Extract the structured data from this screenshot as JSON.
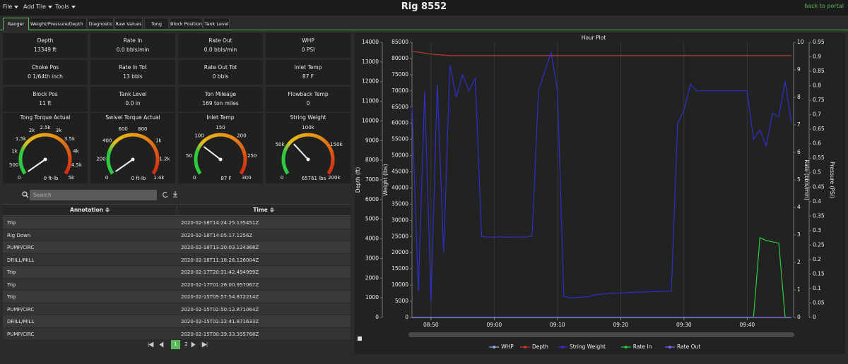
{
  "menu": [
    "File",
    "Add Tile",
    "Tools"
  ],
  "title": "Rig 8552",
  "back_link": "back to portal",
  "tabs": [
    "Ranger",
    "Weight/Pressure/Depth ...",
    "Diagnostic",
    "Raw Values",
    "Tong",
    "Block Position",
    "Tank Level"
  ],
  "tiles": [
    {
      "label": "Depth",
      "value": "13349 ft"
    },
    {
      "label": "Rate In",
      "value": "0.0 bbls/min"
    },
    {
      "label": "Rate Out",
      "value": "0.0 bbls/min"
    },
    {
      "label": "WHP",
      "value": "0 PSI"
    },
    {
      "label": "Choke Pos",
      "value": "0 1/64th inch"
    },
    {
      "label": "Rate In Tot",
      "value": "13 bbls"
    },
    {
      "label": "Rate Out Tot",
      "value": "0 bbls"
    },
    {
      "label": "Inlet Temp",
      "value": "87 F"
    },
    {
      "label": "Block Pos",
      "value": "11 ft"
    },
    {
      "label": "Tank Level",
      "value": "0.0 in"
    },
    {
      "label": "Ton Mileage",
      "value": "169 ton miles"
    },
    {
      "label": "Flowback Temp",
      "value": "0"
    }
  ],
  "gauges": [
    {
      "title": "Tong Torque Actual",
      "lim": [
        0,
        5000
      ],
      "value": 0,
      "value_label": "0 ft-lb",
      "ticks": [
        0,
        500,
        {
          "value": 1000,
          "label": "1k"
        },
        {
          "value": 1500,
          "label": "1.5k"
        },
        {
          "value": 2000,
          "label": "2k"
        },
        {
          "value": 2500,
          "label": "2.5k"
        },
        {
          "value": 3000,
          "label": "3k"
        },
        {
          "value": 3500,
          "label": "3.5k"
        },
        {
          "value": 4000,
          "label": "4k"
        },
        {
          "value": 4500,
          "label": "4.5k"
        },
        {
          "value": 5000,
          "label": "5k"
        }
      ]
    },
    {
      "title": "Swivel Torque Actual",
      "lim": [
        0,
        1400
      ],
      "value": 0,
      "value_label": "0 ft-lb",
      "ticks": [
        0,
        200,
        400,
        600,
        800,
        {
          "value": 1000,
          "label": "1k"
        },
        {
          "value": 1200,
          "label": "1.2k"
        },
        {
          "value": 1400,
          "label": "1.4k"
        }
      ]
    },
    {
      "title": "Inlet Temp",
      "lim": [
        0,
        300
      ],
      "value": 87,
      "value_label": "87 F",
      "ticks": [
        0,
        50,
        100,
        150,
        200,
        250,
        300
      ]
    },
    {
      "title": "String Weight",
      "lim": [
        0,
        200000
      ],
      "value": 65761,
      "value_label": "65761 lbs",
      "ticks": [
        0,
        {
          "value": 50000,
          "label": "50k"
        },
        {
          "value": 100000,
          "label": "100k"
        },
        {
          "value": 150000,
          "label": "150k"
        },
        {
          "value": 200000,
          "label": "200k"
        }
      ]
    }
  ],
  "search_placeholder": "Search",
  "table": {
    "columns": [
      "Annotation",
      "Time"
    ],
    "rows": [
      [
        "Trip",
        "2020-02-18T14:24:25.135451Z"
      ],
      [
        "Rig Down",
        "2020-02-18T14:05:17.1256Z"
      ],
      [
        "PUMP/CIRC",
        "2020-02-18T13:20:03.124368Z"
      ],
      [
        "DRILL/MILL",
        "2020-02-18T11:18:26.126004Z"
      ],
      [
        "Trip",
        "2020-02-17T20:31:42.494999Z"
      ],
      [
        "Trip",
        "2020-02-17T01:26:00.957067Z"
      ],
      [
        "Trip",
        "2020-02-15T05:57:54.872214Z"
      ],
      [
        "PUMP/CIRC",
        "2020-02-15T02:50:12.871064Z"
      ],
      [
        "DRILL/MILL",
        "2020-02-15T02:22:41.871633Z"
      ],
      [
        "PUMP/CIRC",
        "2020-02-15T00:39:33.355768Z"
      ]
    ]
  },
  "pager": [
    "1",
    "2"
  ],
  "chart_data": {
    "type": "line",
    "title": "Hour Plot",
    "legend": "bottom",
    "xgrid": true,
    "xlim": [
      "08:47",
      "09:47"
    ],
    "xticks": [
      "08:50",
      "09:00",
      "09:10",
      "09:20",
      "09:30",
      "09:40"
    ],
    "y_axes": [
      {
        "label": "Depth (ft)",
        "side": "left",
        "lim": [
          0,
          14000
        ],
        "ticks": [
          0,
          1000,
          2000,
          3000,
          4000,
          5000,
          6000,
          7000,
          8000,
          9000,
          10000,
          11000,
          12000,
          13000,
          14000
        ]
      },
      {
        "label": "Weight (lbs)",
        "side": "left",
        "lim": [
          0,
          85000
        ],
        "ticks": [
          0,
          5000,
          10000,
          15000,
          20000,
          25000,
          30000,
          35000,
          40000,
          45000,
          50000,
          55000,
          60000,
          65000,
          70000,
          75000,
          80000,
          85000
        ]
      },
      {
        "label": "Rate (bbls/min)",
        "side": "right",
        "lim": [
          0,
          10
        ],
        "ticks": [
          0,
          1,
          2,
          3,
          4,
          5,
          6,
          7,
          8,
          9,
          10
        ]
      },
      {
        "label": "Pressure (PSI)",
        "side": "right",
        "lim": [
          0,
          0.95
        ],
        "ticks": [
          0,
          0.05,
          0.1,
          0.15,
          0.2,
          0.25,
          0.3,
          0.35,
          0.4,
          0.45,
          0.5,
          0.55,
          0.6,
          0.65,
          0.7,
          0.75,
          0.8,
          0.85,
          0.9,
          0.95
        ]
      }
    ],
    "x": [
      "08:47",
      "08:48",
      "08:49",
      "08:50",
      "08:51",
      "08:52",
      "08:53",
      "08:54",
      "08:55",
      "08:56",
      "08:57",
      "08:58",
      "08:59",
      "09:00",
      "09:01",
      "09:02",
      "09:03",
      "09:04",
      "09:05",
      "09:06",
      "09:07",
      "09:08",
      "09:09",
      "09:10",
      "09:11",
      "09:12",
      "09:13",
      "09:14",
      "09:15",
      "09:16",
      "09:17",
      "09:18",
      "09:19",
      "09:20",
      "09:21",
      "09:22",
      "09:23",
      "09:24",
      "09:25",
      "09:26",
      "09:27",
      "09:28",
      "09:29",
      "09:30",
      "09:31",
      "09:32",
      "09:33",
      "09:34",
      "09:35",
      "09:36",
      "09:37",
      "09:38",
      "09:39",
      "09:40",
      "09:41",
      "09:42",
      "09:43",
      "09:44",
      "09:45",
      "09:46",
      "09:47"
    ],
    "series": [
      {
        "name": "WHP",
        "color": "#8fb3d6",
        "axis": 3,
        "values": [
          0,
          0,
          0,
          0,
          0,
          0,
          0,
          0,
          0,
          0,
          0,
          0,
          0,
          0,
          0,
          0,
          0,
          0,
          0,
          0,
          0,
          0,
          0,
          0,
          0,
          0,
          0,
          0,
          0,
          0,
          0,
          0,
          0,
          0,
          0,
          0,
          0,
          0,
          0,
          0,
          0,
          0,
          0,
          0,
          0,
          0,
          0,
          0,
          0,
          0,
          0,
          0,
          0,
          0,
          0,
          0,
          0,
          0,
          0,
          0,
          0
        ]
      },
      {
        "name": "Depth",
        "color": "#c0392b",
        "axis": 0,
        "values": [
          13540,
          13500,
          13450,
          13400,
          13370,
          13350,
          13320,
          13320,
          13320,
          13320,
          13320,
          13320,
          13320,
          13320,
          13320,
          13320,
          13320,
          13320,
          13320,
          13320,
          13320,
          13320,
          13320,
          13320,
          13320,
          13320,
          13320,
          13320,
          13320,
          13320,
          13320,
          13320,
          13320,
          13320,
          13320,
          13320,
          13320,
          13320,
          13320,
          13320,
          13320,
          13320,
          13320,
          13320,
          13320,
          13320,
          13320,
          13320,
          13320,
          13320,
          13320,
          13320,
          13320,
          13320,
          13320,
          13320,
          13320,
          13320,
          13320,
          13320,
          13320
        ]
      },
      {
        "name": "String Weight",
        "color": "#2f2fc8",
        "axis": 1,
        "values": [
          65000,
          8000,
          70000,
          5000,
          72000,
          20000,
          78000,
          68000,
          75000,
          70000,
          74000,
          25000,
          24800,
          24800,
          24900,
          24800,
          24800,
          24900,
          24800,
          25200,
          70000,
          76000,
          82000,
          70000,
          6500,
          6000,
          6200,
          6300,
          6500,
          7000,
          7200,
          7500,
          7500,
          7600,
          7700,
          7800,
          7800,
          7900,
          8000,
          8000,
          8100,
          8100,
          60000,
          64000,
          72000,
          70000,
          70000,
          70000,
          70000,
          70000,
          70000,
          70000,
          70000,
          70000,
          55000,
          58000,
          53000,
          63000,
          62000,
          73000,
          60000
        ]
      },
      {
        "name": "Rate In",
        "color": "#2ecc40",
        "axis": 2,
        "values": [
          0,
          0,
          0,
          0,
          0,
          0,
          0,
          0,
          0,
          0,
          0,
          0,
          0,
          0,
          0,
          0,
          0,
          0,
          0,
          0,
          0,
          0,
          0,
          0,
          0,
          0,
          0,
          0,
          0,
          0,
          0,
          0,
          0,
          0,
          0,
          0,
          0,
          0,
          0,
          0,
          0,
          0,
          0,
          0,
          0,
          0,
          0,
          0,
          0,
          0,
          0,
          0,
          0,
          0,
          0,
          2.9,
          2.8,
          2.75,
          2.7,
          0,
          0
        ]
      },
      {
        "name": "Rate Out",
        "color": "#7b68ee",
        "axis": 2,
        "values": [
          0,
          0,
          0,
          0,
          0,
          0,
          0,
          0,
          0,
          0,
          0,
          0,
          0,
          0,
          0,
          0,
          0,
          0,
          0,
          0,
          0,
          0,
          0,
          0,
          0,
          0,
          0,
          0,
          0,
          0,
          0,
          0,
          0,
          0,
          0,
          0,
          0,
          0,
          0,
          0,
          0,
          0,
          0,
          0,
          0,
          0,
          0,
          0,
          0,
          0,
          0,
          0,
          0,
          0,
          0,
          0,
          0,
          0,
          0,
          0,
          0
        ]
      }
    ]
  }
}
